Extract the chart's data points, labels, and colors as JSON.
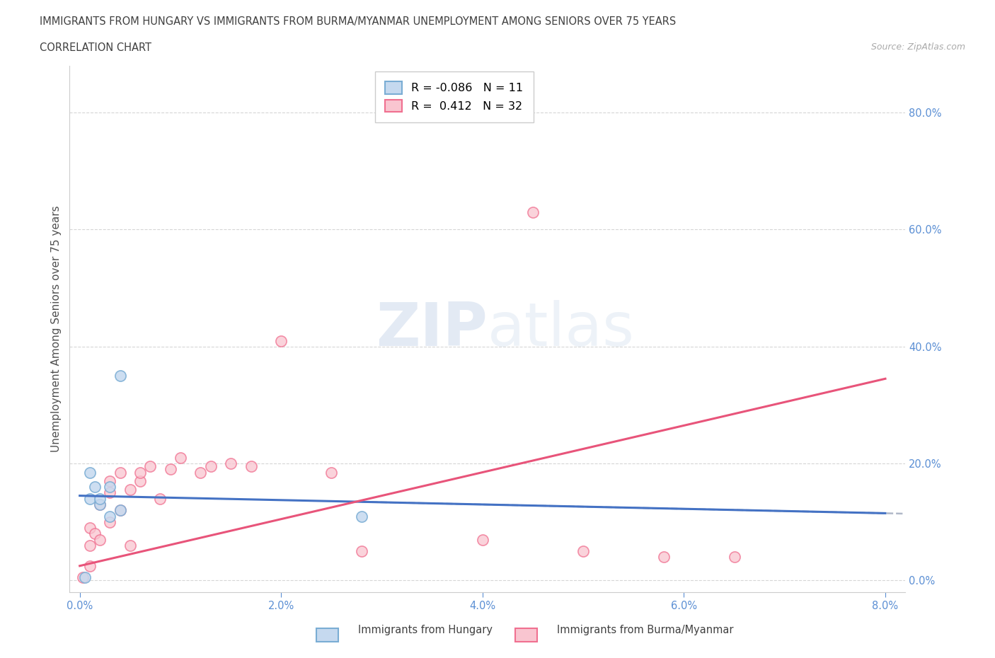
{
  "title_line1": "IMMIGRANTS FROM HUNGARY VS IMMIGRANTS FROM BURMA/MYANMAR UNEMPLOYMENT AMONG SENIORS OVER 75 YEARS",
  "title_line2": "CORRELATION CHART",
  "source_text": "Source: ZipAtlas.com",
  "xlabel_ticks": [
    "0.0%",
    "2.0%",
    "4.0%",
    "6.0%",
    "8.0%"
  ],
  "xlabel_tick_vals": [
    0.0,
    0.02,
    0.04,
    0.06,
    0.08
  ],
  "ylabel_ticks": [
    "0.0%",
    "20.0%",
    "40.0%",
    "60.0%",
    "80.0%"
  ],
  "ylabel_tick_vals": [
    0.0,
    0.2,
    0.4,
    0.6,
    0.8
  ],
  "ylabel_label": "Unemployment Among Seniors over 75 years",
  "xlim": [
    -0.001,
    0.082
  ],
  "ylim": [
    -0.02,
    0.88
  ],
  "watermark_zip": "ZIP",
  "watermark_atlas": "atlas",
  "legend_R_hungary": "-0.086",
  "legend_N_hungary": "11",
  "legend_R_burma": "0.412",
  "legend_N_burma": "32",
  "hungary_color_fill": "#c5d9ef",
  "hungary_color_edge": "#7aadd4",
  "burma_color_fill": "#f9c5d0",
  "burma_color_edge": "#f07090",
  "hungary_line_color": "#4472c4",
  "burma_line_color": "#e8547a",
  "dash_color": "#b0b8c8",
  "hungary_x": [
    0.0005,
    0.001,
    0.001,
    0.0015,
    0.002,
    0.002,
    0.003,
    0.003,
    0.004,
    0.004,
    0.028
  ],
  "hungary_y": [
    0.005,
    0.14,
    0.185,
    0.16,
    0.13,
    0.14,
    0.16,
    0.11,
    0.35,
    0.12,
    0.11
  ],
  "burma_x": [
    0.0003,
    0.001,
    0.001,
    0.001,
    0.0015,
    0.002,
    0.002,
    0.003,
    0.003,
    0.003,
    0.004,
    0.004,
    0.005,
    0.005,
    0.006,
    0.006,
    0.007,
    0.008,
    0.009,
    0.01,
    0.012,
    0.013,
    0.015,
    0.017,
    0.02,
    0.025,
    0.028,
    0.04,
    0.045,
    0.05,
    0.058,
    0.065
  ],
  "burma_y": [
    0.005,
    0.025,
    0.06,
    0.09,
    0.08,
    0.07,
    0.13,
    0.1,
    0.15,
    0.17,
    0.12,
    0.185,
    0.06,
    0.155,
    0.17,
    0.185,
    0.195,
    0.14,
    0.19,
    0.21,
    0.185,
    0.195,
    0.2,
    0.195,
    0.41,
    0.185,
    0.05,
    0.07,
    0.63,
    0.05,
    0.04,
    0.04
  ],
  "hungary_trend_x0": 0.0,
  "hungary_trend_y0": 0.145,
  "hungary_trend_x1": 0.08,
  "hungary_trend_y1": 0.115,
  "burma_trend_x0": 0.0,
  "burma_trend_y0": 0.025,
  "burma_trend_x1": 0.08,
  "burma_trend_y1": 0.345,
  "background_color": "#ffffff",
  "plot_bg_color": "#ffffff",
  "grid_color": "#cccccc"
}
